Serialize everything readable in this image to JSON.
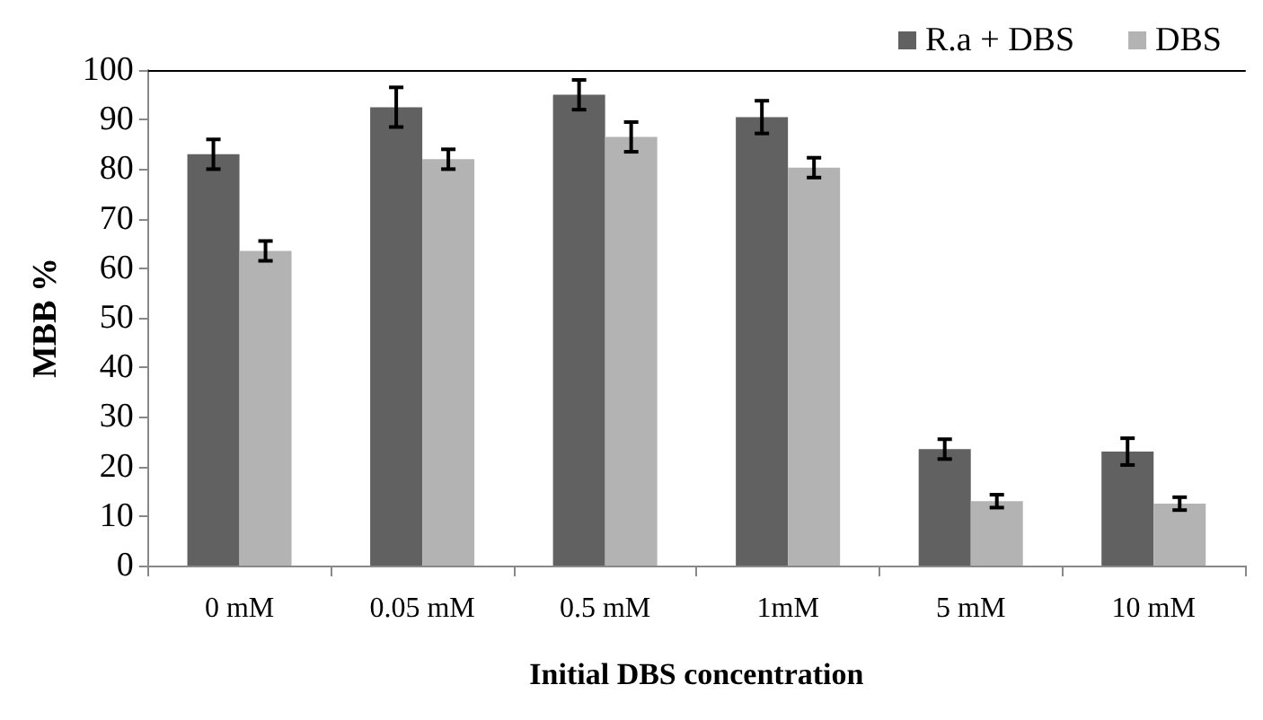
{
  "chart_data": {
    "type": "bar",
    "xlabel": "Initial DBS concentration",
    "ylabel": "MBB %",
    "categories": [
      "0 mM",
      "0.05 mM",
      "0.5 mM",
      "1mM",
      "5 mM",
      "10 mM"
    ],
    "series": [
      {
        "name": "R.a + DBS",
        "color": "#616161",
        "values": [
          83,
          92.5,
          95,
          90.5,
          23.5,
          23
        ],
        "errors": [
          3,
          4,
          3,
          3.3,
          2,
          2.7
        ]
      },
      {
        "name": "DBS",
        "color": "#b3b3b3",
        "values": [
          63.5,
          82,
          86.5,
          80.3,
          13,
          12.5
        ],
        "errors": [
          2,
          2,
          3,
          2,
          1.3,
          1.3
        ]
      }
    ],
    "ylim": [
      0,
      100
    ],
    "yticks": [
      0,
      10,
      20,
      30,
      40,
      50,
      60,
      70,
      80,
      90,
      100
    ],
    "grid": false,
    "legend": "top right"
  }
}
